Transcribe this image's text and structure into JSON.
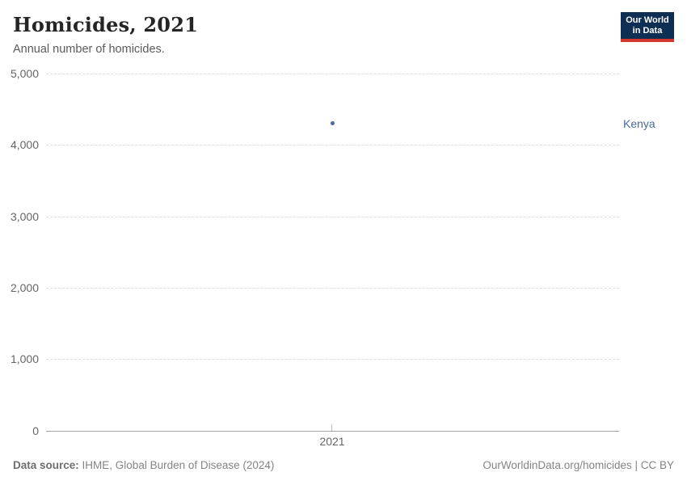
{
  "header": {
    "title": "Homicides, 2021",
    "subtitle": "Annual number of homicides.",
    "logo": {
      "line1": "Our World",
      "line2": "in Data"
    }
  },
  "chart_data": {
    "type": "scatter",
    "title": "Homicides, 2021",
    "subtitle": "Annual number of homicides.",
    "x": [
      2021
    ],
    "x_tick_label": "2021",
    "series": [
      {
        "name": "Kenya",
        "values": [
          4300
        ],
        "color": "#4c6a9c"
      }
    ],
    "xlabel": "",
    "ylabel": "",
    "ylim": [
      0,
      5000
    ],
    "yticks": [
      0,
      1000,
      2000,
      3000,
      4000,
      5000
    ],
    "ytick_labels": [
      "0",
      "1,000",
      "2,000",
      "3,000",
      "4,000",
      "5,000"
    ],
    "grid": "horizontal-dashed",
    "legend_position": "right-of-point"
  },
  "footer": {
    "source_label": "Data source:",
    "source_value": "IHME, Global Burden of Disease (2024)",
    "attribution": "OurWorldinData.org/homicides | CC BY"
  },
  "colors": {
    "accent_blue": "#4c6a9c",
    "logo_navy": "#0f2e54",
    "logo_red": "#d2362c",
    "gridline": "#dedede",
    "axis_line": "#a3a3a3",
    "tick_text": "#666666"
  }
}
